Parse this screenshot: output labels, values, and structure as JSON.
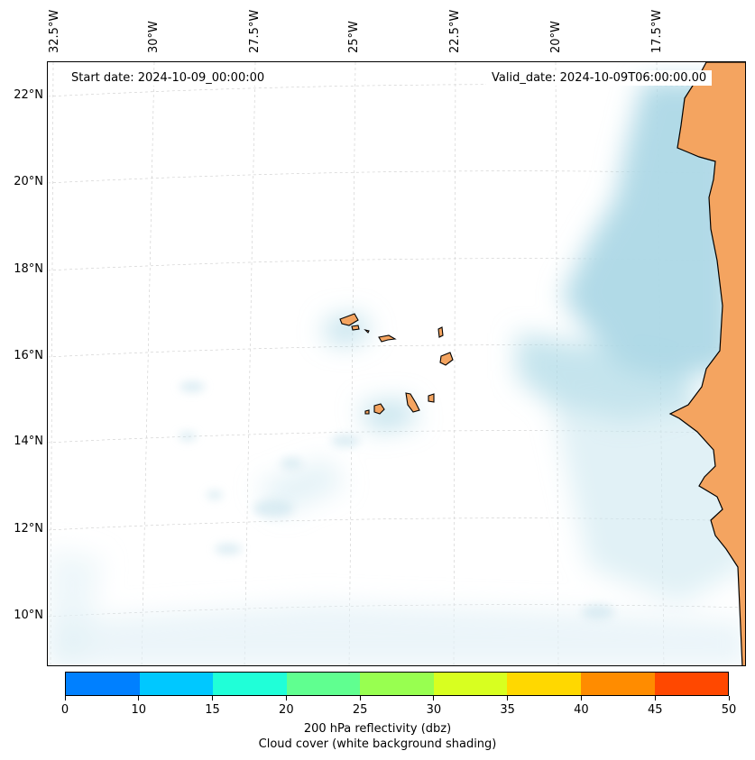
{
  "header": {
    "start_date": "Start date: 2024-10-09_00:00:00",
    "valid_date": "Valid_date: 2024-10-09T06:00:00.00"
  },
  "axes": {
    "lon_labels": [
      "32.5°W",
      "30°W",
      "27.5°W",
      "25°W",
      "22.5°W",
      "20°W",
      "17.5°W"
    ],
    "lat_labels": [
      "22°N",
      "20°N",
      "18°N",
      "16°N",
      "14°N",
      "12°N",
      "10°N"
    ]
  },
  "colors": {
    "land": "#f4a460",
    "cloud": "#add8e6",
    "colorbar": [
      "#0080ff",
      "#00c8ff",
      "#20ffd8",
      "#60ff90",
      "#98ff50",
      "#d8ff20",
      "#ffd800",
      "#ff8c00",
      "#ff4800"
    ]
  },
  "colorbar": {
    "ticks": [
      "0",
      "10",
      "15",
      "20",
      "25",
      "30",
      "35",
      "40",
      "45",
      "50"
    ],
    "title": "200 hPa reflectivity (dbz)",
    "subtitle": "Cloud cover (white background shading)"
  }
}
